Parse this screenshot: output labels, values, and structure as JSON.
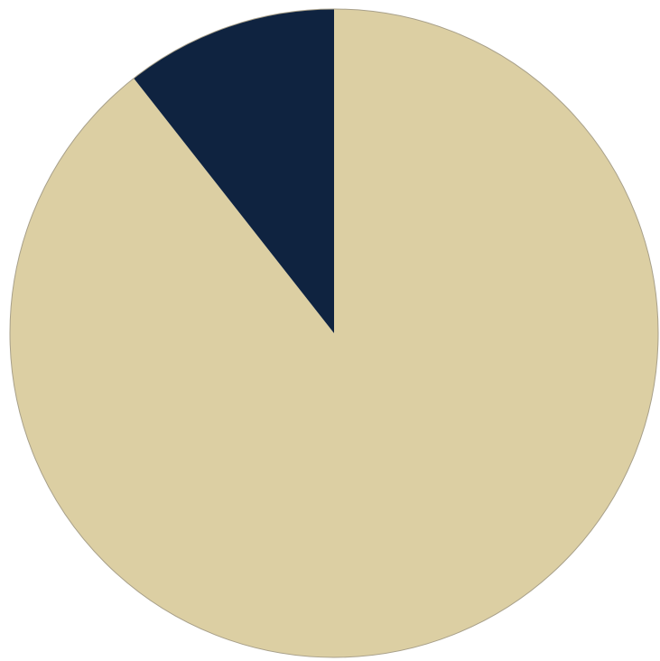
{
  "chart_data": {
    "type": "pie",
    "start_angle": "12 o'clock",
    "direction": "clockwise",
    "slices": [
      {
        "value": 89.4,
        "color": "#dccfa3"
      },
      {
        "value": 10.6,
        "color": "#0f2340"
      }
    ]
  },
  "colors": {
    "background": "#ffffff",
    "slice_border": "#a8a08a"
  }
}
